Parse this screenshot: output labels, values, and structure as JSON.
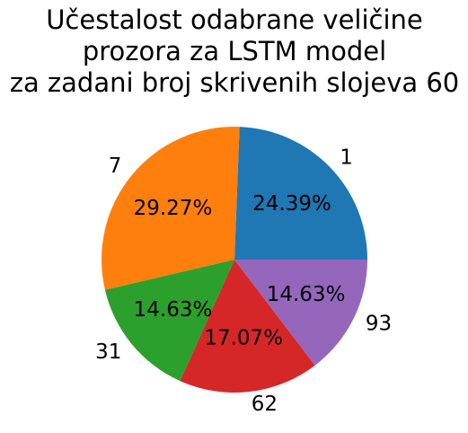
{
  "chart_data": {
    "type": "pie",
    "title": "Učestalost odabrane veličine\nprozora za LSTM model\nza zadani broj skrivenih slojeva 60",
    "title_lines": [
      "Učestalost odabrane veličine",
      "prozora za LSTM model",
      "za zadani broj skrivenih slojeva 60"
    ],
    "categories": [
      "1",
      "7",
      "31",
      "62",
      "93"
    ],
    "values": [
      24.39,
      29.27,
      14.63,
      17.07,
      14.63
    ],
    "percent_labels": [
      "24.39%",
      "29.27%",
      "14.63%",
      "17.07%",
      "14.63%"
    ],
    "colors": [
      "#1f77b4",
      "#ff7f0e",
      "#2ca02c",
      "#d62728",
      "#9467bd"
    ],
    "start_angle_deg": 0,
    "direction": "counterclockwise",
    "legend": "none"
  }
}
